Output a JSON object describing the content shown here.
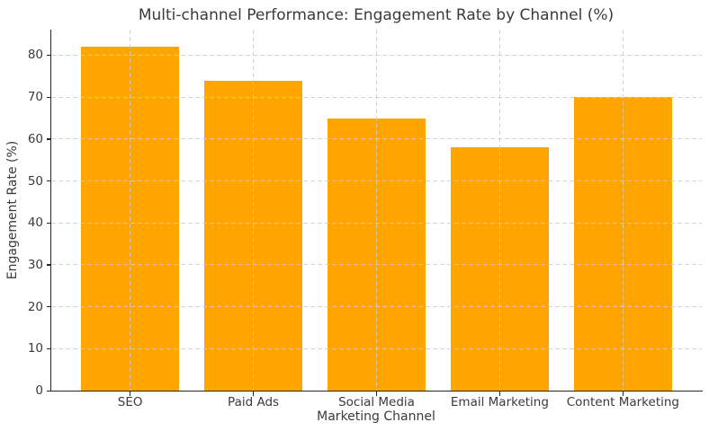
{
  "figure": {
    "background": "#ffffff",
    "text_color": "#3a3a3a",
    "spine_color": "#262626",
    "grid_color": "#cdcdcd"
  },
  "chart_data": {
    "type": "bar",
    "title": "Multi-channel Performance: Engagement Rate by Channel (%)",
    "xlabel": "Marketing Channel",
    "ylabel": "Engagement Rate (%)",
    "categories": [
      "SEO",
      "Paid Ads",
      "Social Media",
      "Email Marketing",
      "Content Marketing"
    ],
    "values": [
      82,
      74,
      65,
      58,
      70
    ],
    "bar_color": "#FFA500",
    "yticks": [
      0,
      10,
      20,
      30,
      40,
      50,
      60,
      70,
      80
    ],
    "ylim": [
      0,
      86.1
    ],
    "grid": true,
    "grid_style": "dashed",
    "legend": "none"
  }
}
